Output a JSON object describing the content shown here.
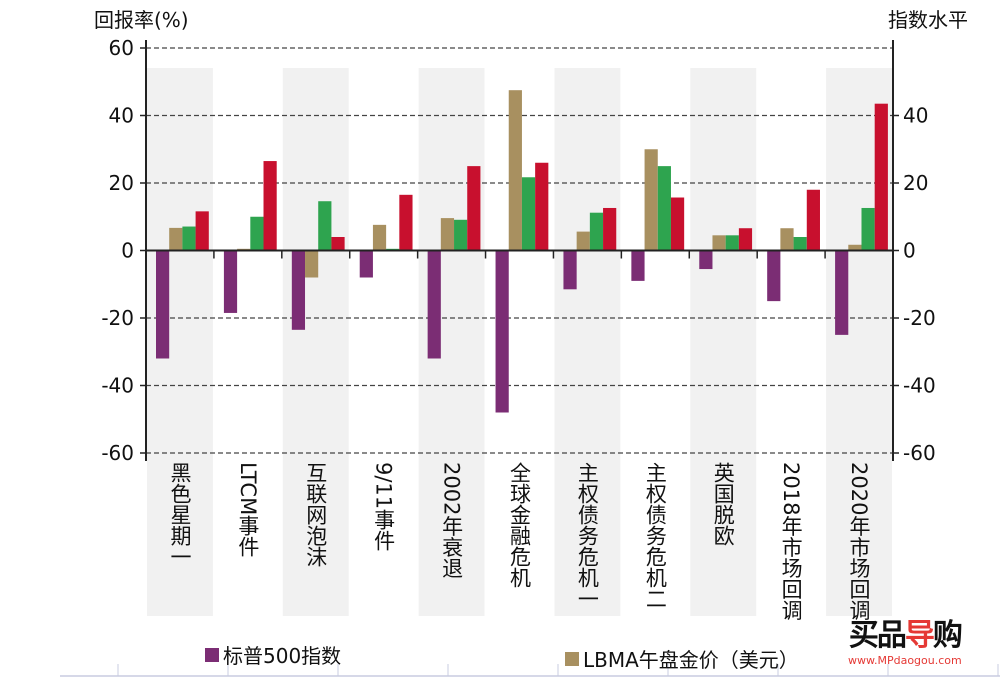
{
  "chart_data": {
    "type": "bar",
    "left_axis_title": "回报率(%)",
    "right_axis_title": "指数水平",
    "ylim": [
      -60,
      60
    ],
    "y2lim": [
      -60,
      40
    ],
    "left_ticks": [
      60,
      40,
      20,
      0,
      -20,
      -40,
      -60
    ],
    "right_ticks": [
      40,
      20,
      0,
      -20,
      -40,
      -60
    ],
    "grid": "dashed horizontal",
    "categories": [
      "黑色星期一",
      "LTCM事件",
      "互联网泡沫",
      "9/11事件",
      "2002年衰退",
      "全球金融危机",
      "主权债务危机一",
      "主权债务危机二",
      "英国脱欧",
      "2018年市场回调",
      "2020年市场回调"
    ],
    "series": [
      {
        "name": "标普500指数",
        "color": "#7b2d74",
        "values": [
          -32,
          -18.5,
          -23.5,
          -8,
          -32,
          -48,
          -11.5,
          -9,
          -5.5,
          -15,
          -25
        ]
      },
      {
        "name": "LBMA午盘金价（美元）",
        "color": "#a89060",
        "values": [
          6.7,
          0.5,
          -8,
          7.6,
          9.6,
          47.5,
          5.6,
          30,
          4.5,
          6.6,
          1.7
        ]
      },
      {
        "color": "#2ea44f",
        "values": [
          7.1,
          10,
          14.6,
          0.5,
          9.1,
          21.7,
          11.2,
          25,
          4.5,
          4,
          12.6
        ]
      },
      {
        "color": "#c8102e",
        "values": [
          11.6,
          26.5,
          4,
          16.5,
          25,
          26,
          12.6,
          15.7,
          6.6,
          18,
          43.5
        ]
      }
    ],
    "legend_position": "bottom"
  },
  "watermark": {
    "logo": "买品导购",
    "url": "www.MPdaogou.com"
  }
}
